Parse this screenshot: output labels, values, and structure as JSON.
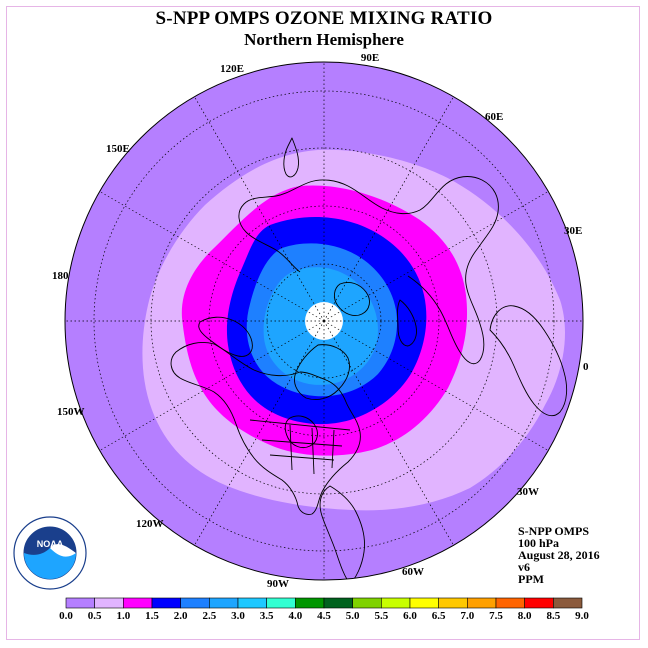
{
  "header": {
    "title": "S-NPP OMPS OZONE MIXING RATIO",
    "subtitle": "Northern Hemisphere"
  },
  "info": {
    "lines": [
      "S-NPP OMPS",
      "100 hPa",
      "August 28, 2016",
      "v6",
      "PPM"
    ]
  },
  "logo": {
    "text": "NOAA"
  },
  "longitude_labels": {
    "lon_0": "0",
    "lon_30E": "30E",
    "lon_60E": "60E",
    "lon_90E": "90E",
    "lon_120E": "120E",
    "lon_150E": "150E",
    "lon_180": "180",
    "lon_150W": "150W",
    "lon_120W": "120W",
    "lon_90W": "90W",
    "lon_60W": "60W",
    "lon_30W": "30W"
  },
  "colorbar": {
    "ticks": [
      "0.0",
      "0.5",
      "1.0",
      "1.5",
      "2.0",
      "2.5",
      "3.0",
      "3.5",
      "4.0",
      "4.5",
      "5.0",
      "5.5",
      "6.0",
      "6.5",
      "7.0",
      "7.5",
      "8.0",
      "8.5",
      "9.0"
    ],
    "colors": [
      "#b57fff",
      "#e1b4ff",
      "#ff00ff",
      "#0000ff",
      "#1e80ff",
      "#1ea5ff",
      "#1ec8ff",
      "#32ffd2",
      "#009600",
      "#00621e",
      "#7fd200",
      "#c8ff00",
      "#ffff00",
      "#ffc800",
      "#ffa000",
      "#ff6400",
      "#ff0000",
      "#8b5a3c"
    ]
  },
  "map_colors": {
    "background": "#b57fff",
    "level_0_5": "#e1b4ff",
    "level_1_0": "#ff00ff",
    "level_1_5": "#0000ff",
    "level_2_0": "#1e80ff",
    "level_2_5": "#1ea5ff",
    "pole_hole": "#ffffff"
  }
}
